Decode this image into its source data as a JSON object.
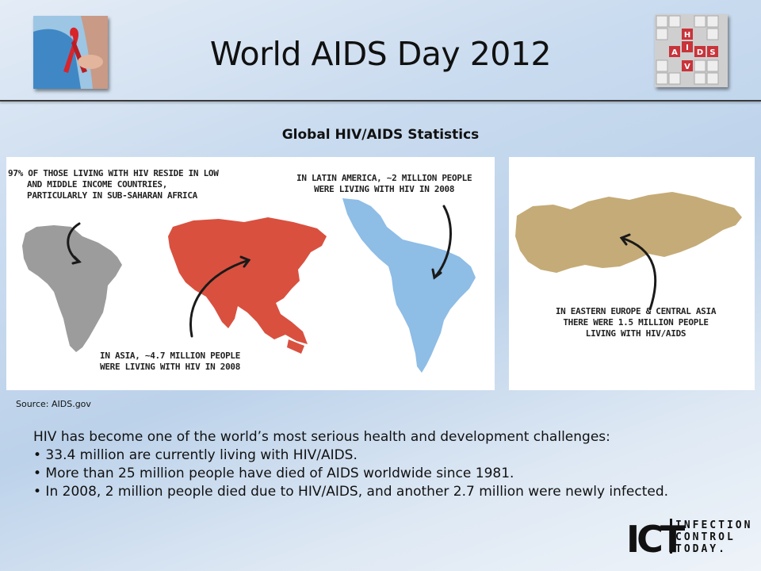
{
  "slide": {
    "title": "World AIDS Day 2012",
    "subtitle": "Global HIV/AIDS Statistics",
    "source": "Source:  AIDS.gov"
  },
  "tiles": [
    "H",
    "I",
    "V",
    "A",
    "I",
    "D",
    "S"
  ],
  "panel_left": {
    "africa_caption": [
      "97% OF THOSE LIVING WITH HIV RESIDE IN LOW",
      "AND MIDDLE INCOME COUNTRIES,",
      "PARTICULARLY IN SUB-SAHARAN AFRICA"
    ],
    "latin_caption": [
      "IN LATIN AMERICA, ~2 MILLION PEOPLE",
      "WERE LIVING WITH HIV IN 2008"
    ],
    "asia_caption": [
      "IN ASIA, ~4.7 MILLION PEOPLE",
      "WERE LIVING WITH HIV IN 2008"
    ]
  },
  "panel_right": {
    "europe_caption": [
      "IN EASTERN EUROPE & CENTRAL ASIA",
      "THERE WERE 1.5 MILLION PEOPLE",
      "LIVING WITH HIV/AIDS"
    ]
  },
  "body": {
    "intro": "HIV has become one of the world’s most serious health and development challenges:",
    "bullets": [
      "• 33.4 million are currently living with HIV/AIDS.",
      "• More than 25 million people have died of AIDS worldwide since 1981.",
      "• In 2008, 2 million people died due to HIV/AIDS, and another 2.7 million were newly infected."
    ]
  },
  "logo": {
    "mark": "ICT",
    "lines": [
      "INFECTION",
      "CONTROL",
      "TODAY."
    ]
  },
  "colors": {
    "africa": "#9c9c9c",
    "asia": "#d9503f",
    "latin": "#8ebde6",
    "europe": "#c5ab77",
    "highlight_text": "#b0b0b0"
  }
}
